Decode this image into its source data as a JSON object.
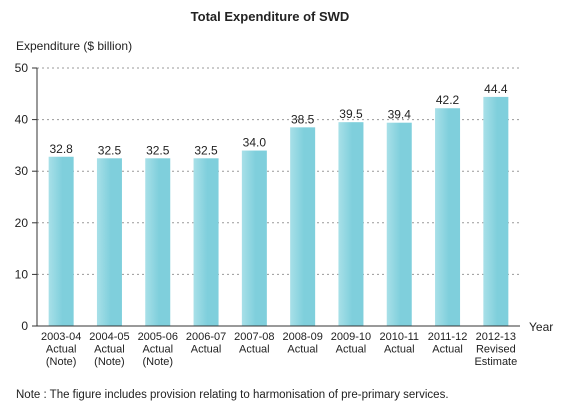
{
  "chart_data": {
    "type": "bar",
    "title": "Total Expenditure of SWD",
    "ylabel": "Expenditure ($ billion)",
    "xlabel": "Year",
    "ylim": [
      0,
      50
    ],
    "yticks": [
      0,
      10,
      20,
      30,
      40,
      50
    ],
    "grid": "horizontal dotted",
    "categories": [
      [
        "2003-04",
        "Actual",
        "(Note)"
      ],
      [
        "2004-05",
        "Actual",
        "(Note)"
      ],
      [
        "2005-06",
        "Actual",
        "(Note)"
      ],
      [
        "2006-07",
        "Actual"
      ],
      [
        "2007-08",
        "Actual"
      ],
      [
        "2008-09",
        "Actual"
      ],
      [
        "2009-10",
        "Actual"
      ],
      [
        "2010-11",
        "Actual"
      ],
      [
        "2011-12",
        "Actual"
      ],
      [
        "2012-13",
        "Revised",
        "Estimate"
      ]
    ],
    "values": [
      32.8,
      32.5,
      32.5,
      32.5,
      34.0,
      38.5,
      39.5,
      39.4,
      42.2,
      44.4
    ],
    "value_labels": [
      "32.8",
      "32.5",
      "32.5",
      "32.5",
      "34.0",
      "38.5",
      "39.5",
      "39.4",
      "42.2",
      "44.4"
    ],
    "bar_color": "#7fcfdc",
    "bar_highlight": "#a8e0e8"
  },
  "note": "Note : The figure includes provision relating to harmonisation of pre-primary services."
}
